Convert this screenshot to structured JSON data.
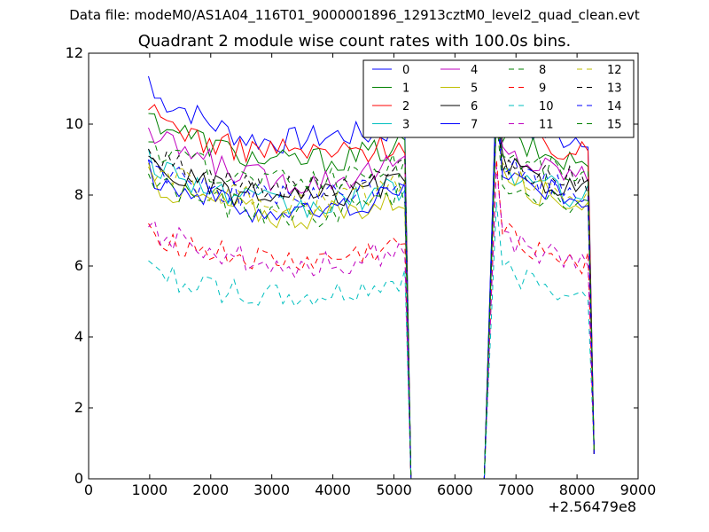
{
  "figure": {
    "supertitle": "Data file: modeM0/AS1A04_116T01_9000001896_12913cztM0_level2_quad_clean.evt",
    "title": "Quadrant 2 module wise count rates with 100.0s bins.",
    "x_offset_label": "+2.56479e8"
  },
  "chart_data": {
    "type": "line",
    "xlim": [
      0,
      9000
    ],
    "ylim": [
      0,
      12
    ],
    "x_ticks": [
      "0",
      "1000",
      "2000",
      "3000",
      "4000",
      "5000",
      "6000",
      "7000",
      "8000",
      "9000"
    ],
    "y_ticks": [
      "0",
      "2",
      "4",
      "6",
      "8",
      "10",
      "12"
    ],
    "x_offset": "+2.56479e8",
    "legend_position": "upper-right",
    "legend_columns": 4,
    "segments": [
      [
        980,
        5180
      ],
      [
        6680,
        8230
      ]
    ],
    "gap": [
      5280,
      6480
    ],
    "end_x": 8280,
    "series": [
      {
        "name": "0",
        "color": "#0000ff",
        "dash": "solid",
        "start": 11.35,
        "seg1": [
          10.8,
          10.5,
          10.0,
          9.6,
          9.5,
          9.6,
          9.7,
          9.7,
          9.9
        ],
        "seg2_peak": 11.2,
        "seg2": [
          10.2,
          9.8,
          9.6,
          9.7
        ]
      },
      {
        "name": "1",
        "color": "#008000",
        "dash": "solid",
        "start": 10.3,
        "seg1": [
          10.2,
          9.8,
          9.4,
          9.1,
          8.9,
          9.0,
          9.0,
          9.2,
          9.4
        ],
        "seg2_peak": 11.0,
        "seg2": [
          9.8,
          9.3,
          9.0,
          8.9
        ]
      },
      {
        "name": "2",
        "color": "#ff0000",
        "dash": "solid",
        "start": 10.4,
        "seg1": [
          10.3,
          9.9,
          9.4,
          9.3,
          9.3,
          9.2,
          9.2,
          9.3,
          9.5
        ],
        "seg2_peak": 10.9,
        "seg2": [
          10.0,
          9.5,
          9.3,
          9.1
        ]
      },
      {
        "name": "3",
        "color": "#00bfbf",
        "dash": "solid",
        "start": 9.3,
        "seg1": [
          8.9,
          8.6,
          8.1,
          7.9,
          7.7,
          7.6,
          7.8,
          8.0,
          8.2
        ],
        "seg2_peak": 10.5,
        "seg2": [
          8.8,
          8.4,
          8.1,
          7.9
        ]
      },
      {
        "name": "4",
        "color": "#bf00bf",
        "dash": "solid",
        "start": 9.9,
        "seg1": [
          9.6,
          9.3,
          8.9,
          8.6,
          8.4,
          8.4,
          8.5,
          8.7,
          8.9
        ],
        "seg2_peak": 10.8,
        "seg2": [
          9.3,
          8.9,
          8.7,
          8.5
        ]
      },
      {
        "name": "5",
        "color": "#bfbf00",
        "dash": "solid",
        "start": 8.8,
        "seg1": [
          8.4,
          8.0,
          7.8,
          7.6,
          7.4,
          7.4,
          7.5,
          7.7,
          7.9
        ],
        "seg2_peak": 10.3,
        "seg2": [
          8.6,
          8.2,
          7.9,
          7.7
        ]
      },
      {
        "name": "6",
        "color": "#000000",
        "dash": "solid",
        "start": 9.1,
        "seg1": [
          8.8,
          8.5,
          8.2,
          8.0,
          7.9,
          7.9,
          8.0,
          8.2,
          8.4
        ],
        "seg2_peak": 10.4,
        "seg2": [
          8.9,
          8.5,
          8.3,
          8.1
        ]
      },
      {
        "name": "7",
        "color": "#0000ff",
        "dash": "solid",
        "start": 9.0,
        "seg1": [
          8.6,
          8.2,
          7.9,
          7.6,
          7.5,
          7.5,
          7.6,
          7.9,
          8.1
        ],
        "seg2_peak": 11.3,
        "seg2": [
          8.9,
          8.3,
          8.0,
          7.9
        ]
      },
      {
        "name": "8",
        "color": "#008000",
        "dash": "dashed",
        "start": 8.6,
        "seg1": [
          8.4,
          8.1,
          7.8,
          7.6,
          7.5,
          7.4,
          7.6,
          7.8,
          8.0
        ],
        "seg2_peak": 10.2,
        "seg2": [
          8.5,
          8.1,
          7.9,
          7.8
        ]
      },
      {
        "name": "9",
        "color": "#ff0000",
        "dash": "dashed",
        "start": 7.2,
        "seg1": [
          7.0,
          6.6,
          6.4,
          6.2,
          6.1,
          6.1,
          6.2,
          6.4,
          6.6
        ],
        "seg2_peak": 9.0,
        "seg2": [
          7.0,
          6.6,
          6.3,
          6.1
        ]
      },
      {
        "name": "10",
        "color": "#00bfbf",
        "dash": "dashed",
        "start": 6.15,
        "seg1": [
          5.9,
          5.6,
          5.4,
          5.2,
          5.1,
          5.1,
          5.2,
          5.4,
          5.6
        ],
        "seg2_peak": 7.8,
        "seg2": [
          6.0,
          5.6,
          5.4,
          5.3
        ]
      },
      {
        "name": "11",
        "color": "#bf00bf",
        "dash": "dashed",
        "start": 7.1,
        "seg1": [
          7.0,
          6.7,
          6.5,
          6.2,
          6.1,
          6.0,
          6.1,
          6.3,
          6.5
        ],
        "seg2_peak": 8.8,
        "seg2": [
          6.9,
          6.5,
          6.2,
          6.0
        ]
      },
      {
        "name": "12",
        "color": "#bfbf00",
        "dash": "dashed",
        "start": 8.9,
        "seg1": [
          8.7,
          8.4,
          8.1,
          7.9,
          7.8,
          7.7,
          7.9,
          8.1,
          8.3
        ],
        "seg2_peak": 10.1,
        "seg2": [
          8.7,
          8.3,
          8.1,
          7.9
        ]
      },
      {
        "name": "13",
        "color": "#000000",
        "dash": "dashed",
        "start": 9.3,
        "seg1": [
          9.1,
          8.8,
          8.5,
          8.3,
          8.2,
          8.2,
          8.3,
          8.5,
          8.7
        ],
        "seg2_peak": 10.6,
        "seg2": [
          9.1,
          8.7,
          8.5,
          8.3
        ]
      },
      {
        "name": "14",
        "color": "#0000ff",
        "dash": "dashed",
        "start": 9.0,
        "seg1": [
          8.8,
          8.5,
          8.2,
          8.0,
          7.9,
          7.9,
          8.0,
          8.2,
          8.4
        ],
        "seg2_peak": 10.4,
        "seg2": [
          8.9,
          8.5,
          8.2,
          8.0
        ]
      },
      {
        "name": "15",
        "color": "#008000",
        "dash": "dashed",
        "start": 9.5,
        "seg1": [
          9.3,
          9.0,
          8.7,
          8.5,
          8.4,
          8.4,
          8.5,
          8.7,
          8.9
        ],
        "seg2_peak": 10.7,
        "seg2": [
          9.3,
          8.9,
          8.7,
          8.5
        ]
      }
    ]
  }
}
